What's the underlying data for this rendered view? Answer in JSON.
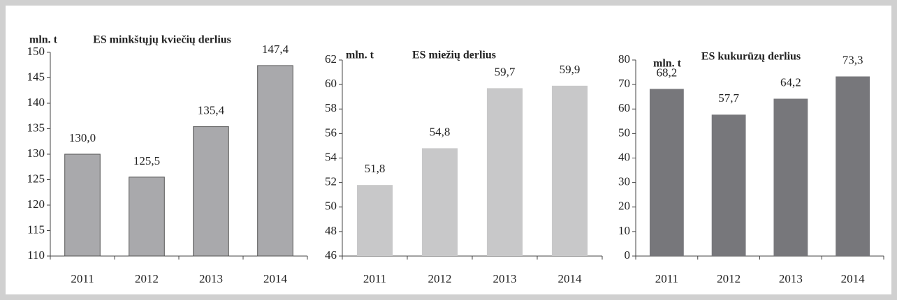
{
  "chart_data": [
    {
      "type": "bar",
      "title": "ES minkštųjų kviečių derlius",
      "ylabel": "mln. t",
      "categories": [
        "2011",
        "2012",
        "2013",
        "2014"
      ],
      "values": [
        130.0,
        125.5,
        135.4,
        147.4
      ],
      "value_labels": [
        "130,0",
        "125,5",
        "135,4",
        "147,4"
      ],
      "color": "#a9a9ac",
      "ylim": [
        110,
        150
      ],
      "yticks": [
        110,
        115,
        120,
        125,
        130,
        135,
        140,
        145,
        150
      ]
    },
    {
      "type": "bar",
      "title": "ES miežių derlius",
      "ylabel": "mln. t",
      "categories": [
        "2011",
        "2012",
        "2013",
        "2014"
      ],
      "values": [
        51.8,
        54.8,
        59.7,
        59.9
      ],
      "value_labels": [
        "51,8",
        "54,8",
        "59,7",
        "59,9"
      ],
      "color": "#c8c8c9",
      "ylim": [
        46,
        62
      ],
      "yticks": [
        46,
        48,
        50,
        52,
        54,
        56,
        58,
        60,
        62
      ]
    },
    {
      "type": "bar",
      "title": "ES kukurūzų derlius",
      "ylabel": "mln. t",
      "categories": [
        "2011",
        "2012",
        "2013",
        "2014"
      ],
      "values": [
        68.2,
        57.7,
        64.2,
        73.3
      ],
      "value_labels": [
        "68,2",
        "57,7",
        "64,2",
        "73,3"
      ],
      "color": "#77777b",
      "ylim": [
        0,
        80
      ],
      "yticks": [
        0,
        10,
        20,
        30,
        40,
        50,
        60,
        70,
        80
      ]
    }
  ]
}
